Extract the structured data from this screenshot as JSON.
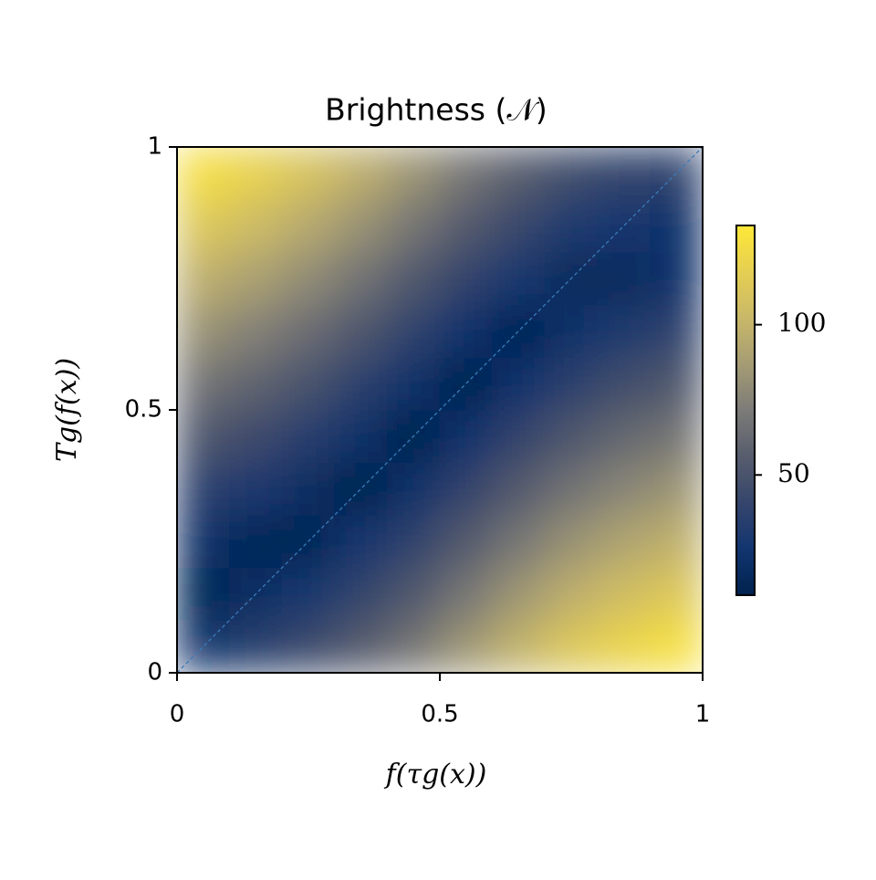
{
  "chart_data": {
    "type": "heatmap",
    "title": "Brightness (𝒩)",
    "x_label": "f(τg(x))",
    "y_label": "Tg(f(x))",
    "x": [
      0.05,
      0.15,
      0.25,
      0.35,
      0.45,
      0.55,
      0.65,
      0.75,
      0.85,
      0.95
    ],
    "y": [
      0.05,
      0.15,
      0.25,
      0.35,
      0.45,
      0.55,
      0.65,
      0.75,
      0.85,
      0.95
    ],
    "values": [
      [
        28,
        35,
        43,
        55,
        68,
        84,
        99,
        112,
        121,
        128
      ],
      [
        13,
        20,
        28,
        40,
        53,
        69,
        84,
        97,
        106,
        113
      ],
      [
        22,
        14,
        13,
        25,
        38,
        54,
        69,
        82,
        91,
        98
      ],
      [
        37,
        29,
        19,
        10,
        23,
        39,
        54,
        67,
        76,
        83
      ],
      [
        52,
        44,
        34,
        22,
        8,
        24,
        39,
        52,
        61,
        68
      ],
      [
        67,
        59,
        49,
        37,
        23,
        9,
        24,
        37,
        46,
        53
      ],
      [
        82,
        74,
        64,
        52,
        38,
        24,
        12,
        22,
        31,
        38
      ],
      [
        97,
        89,
        79,
        67,
        53,
        39,
        27,
        16,
        16,
        23
      ],
      [
        112,
        104,
        94,
        82,
        68,
        54,
        42,
        31,
        25,
        23
      ],
      [
        127,
        119,
        109,
        97,
        83,
        69,
        57,
        46,
        40,
        38
      ]
    ],
    "xlim": [
      0,
      1
    ],
    "ylim": [
      0,
      1
    ],
    "xticks": [
      0,
      0.5,
      1
    ],
    "yticks": [
      0,
      0.5,
      1
    ],
    "colormap": "cividis",
    "clim": [
      10,
      133
    ],
    "cticks": [
      50,
      100
    ]
  }
}
